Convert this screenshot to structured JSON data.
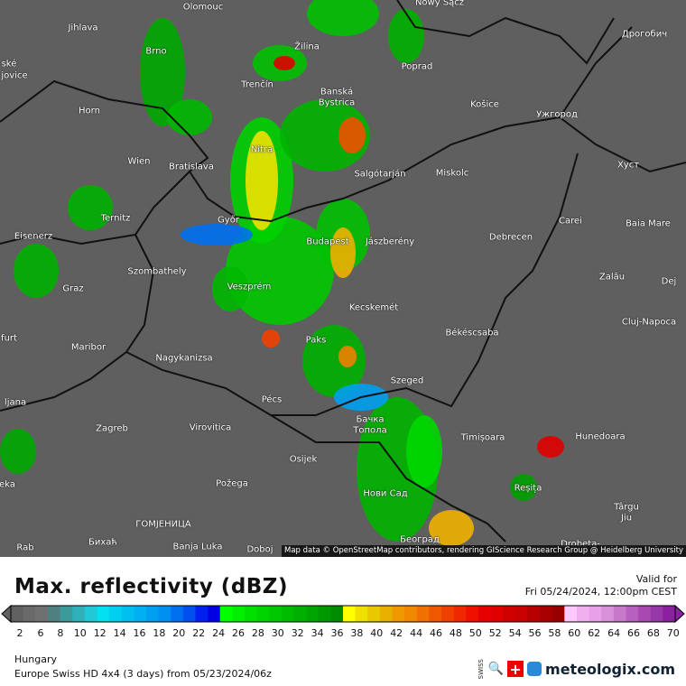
{
  "map": {
    "cities": [
      "Olomouc",
      "Nowy Sącz",
      "Jihlava",
      "Brno",
      "Žilina",
      "Poprad",
      "Дрогобич",
      "ské",
      "jovice",
      "Trenčín",
      "Banská",
      "Bystrica",
      "Košice",
      "Ужгород",
      "Horn",
      "Wien",
      "Bratislava",
      "Nitra",
      "Salgótarján",
      "Miskolc",
      "Хуст",
      "Ternitz",
      "Győr",
      "Carei",
      "Baia Mare",
      "Eisenerz",
      "Budapest",
      "Jászberény",
      "Debrecen",
      "Szombathely",
      "Graz",
      "Veszprém",
      "Zalău",
      "Dej",
      "Kecskemét",
      "Cluj-Napoca",
      "Paks",
      "Békéscsaba",
      "furt",
      "Maribor",
      "Nagykanizsa",
      "Szeged",
      "Pécs",
      "ljana",
      "Zagreb",
      "Virovitica",
      "Бачка",
      "Топола",
      "Timișoara",
      "Hunedoara",
      "Osijek",
      "Požega",
      "Нови Сад",
      "Reșița",
      "eka",
      "Târgu",
      "Jiu",
      "ГОМЈЕНИЦА",
      "Бихаћ",
      "Banja Luka",
      "Doboj",
      "Београд",
      "Drobeta-",
      "Rab"
    ],
    "attribution": "Map data © OpenStreetMap contributors, rendering GIScience Research Group @ Heidelberg University",
    "background_color": "#5f5f5f"
  },
  "legend": {
    "title": "Max. reflectivity (dBZ)",
    "valid_label": "Valid for",
    "valid_time": "Fri 05/24/2024, 12:00pm CEST",
    "ticks": [
      "2",
      "6",
      "8",
      "10",
      "12",
      "14",
      "16",
      "18",
      "20",
      "22",
      "24",
      "26",
      "28",
      "30",
      "32",
      "34",
      "36",
      "38",
      "40",
      "42",
      "44",
      "46",
      "48",
      "50",
      "52",
      "54",
      "56",
      "58",
      "60",
      "62",
      "64",
      "66",
      "68",
      "70"
    ],
    "colors": [
      "#606060",
      "#6a6a6a",
      "#707070",
      "#4f8080",
      "#3d9a9a",
      "#30b0b8",
      "#20c8d8",
      "#00e0f0",
      "#00d0f0",
      "#00c0f0",
      "#00b0f0",
      "#00a0f0",
      "#0090f0",
      "#0070f0",
      "#0050f0",
      "#0020f0",
      "#0000e0",
      "#00ff00",
      "#00ee00",
      "#00e000",
      "#00d400",
      "#00c800",
      "#00bc00",
      "#00b000",
      "#00a400",
      "#009800",
      "#008c00",
      "#ffff00",
      "#f0e000",
      "#e8c800",
      "#e8b000",
      "#f09800",
      "#f08800",
      "#f07000",
      "#f05800",
      "#f04000",
      "#f02800",
      "#f01000",
      "#e80000",
      "#e00000",
      "#d00000",
      "#c80000",
      "#b80000",
      "#a80000",
      "#980000",
      "#ffc8ff",
      "#f0b0f0",
      "#e8a0e8",
      "#d890d8",
      "#c878c8",
      "#b860c0",
      "#a848b0",
      "#9838a8",
      "#8820a0"
    ]
  },
  "footer": {
    "region": "Hungary",
    "model": "Europe Swiss HD 4x4 (3 days) from  05/23/2024/06z",
    "brand": "meteologix.com",
    "swiss_hd": "SWISS HD"
  }
}
